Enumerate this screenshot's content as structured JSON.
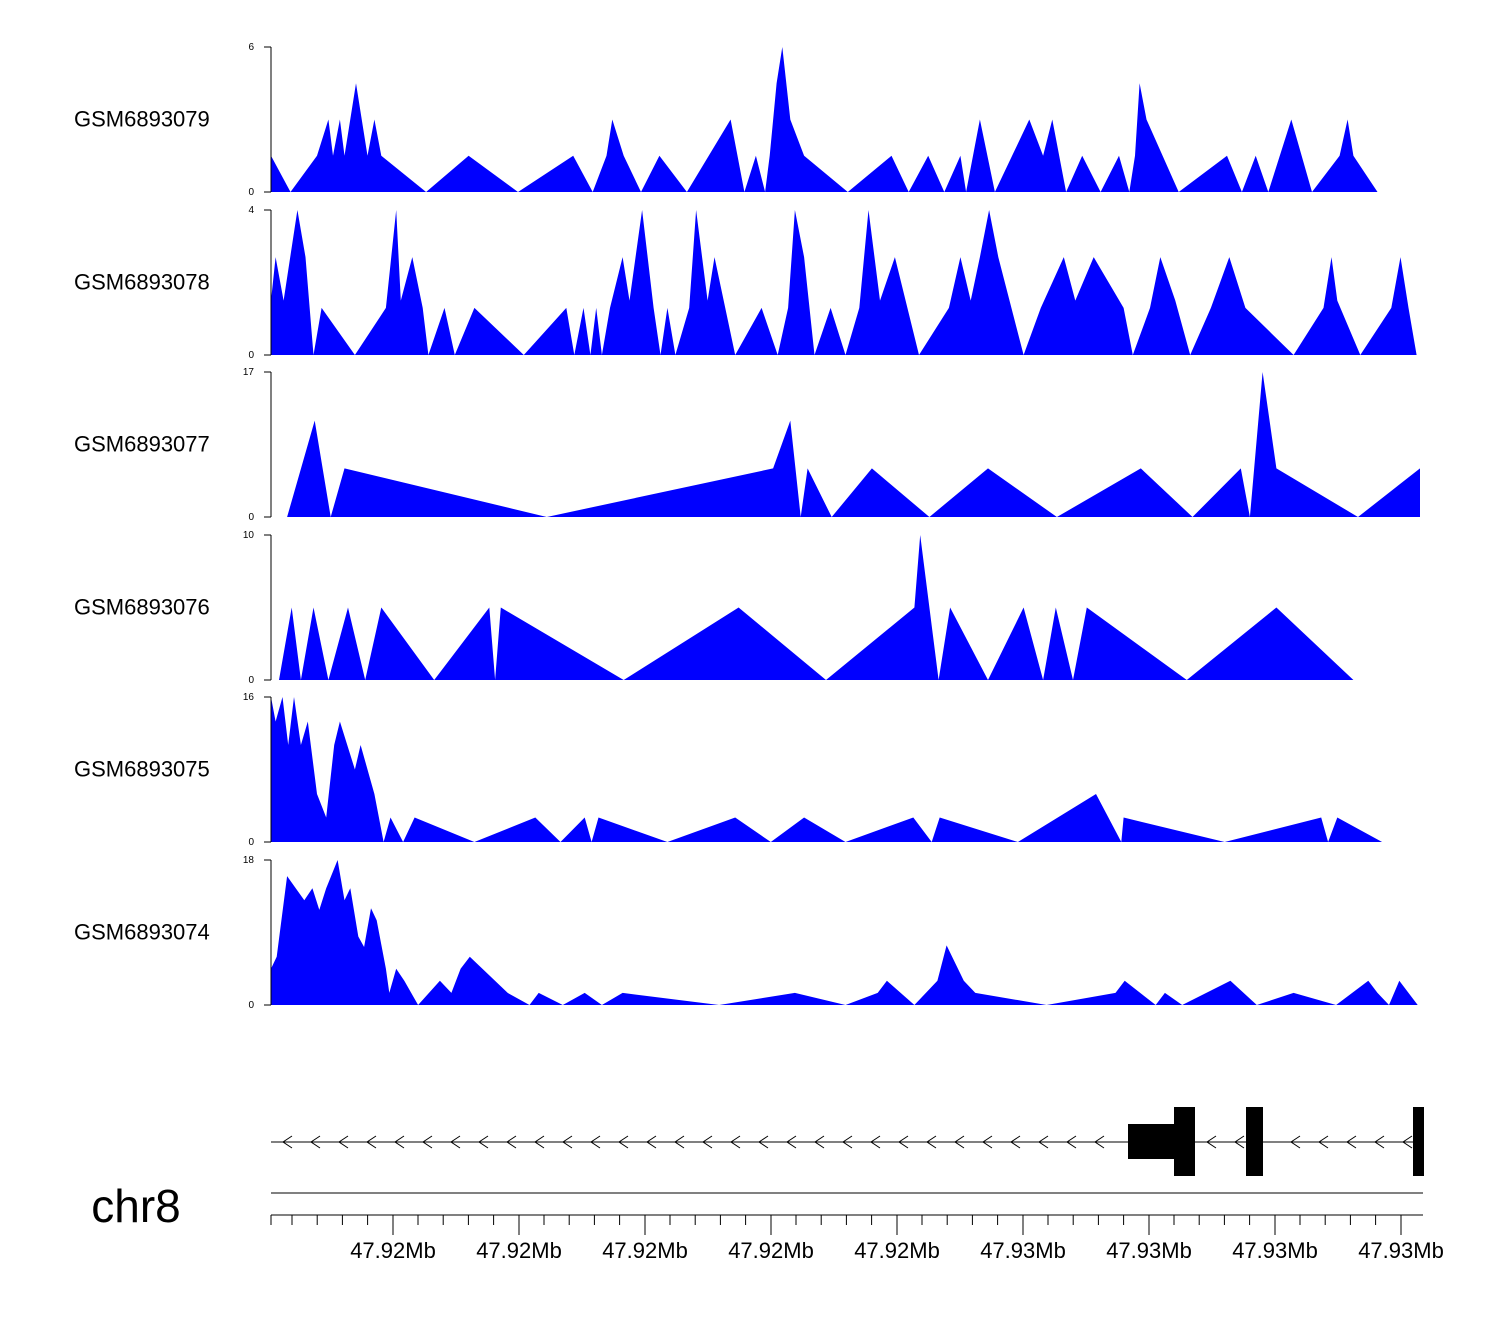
{
  "chart_data": {
    "type": "area",
    "chromosome": "chr8",
    "x_tick_labels": [
      "47.92Mb",
      "47.92Mb",
      "47.92Mb",
      "47.92Mb",
      "47.92Mb",
      "47.93Mb",
      "47.93Mb",
      "47.93Mb",
      "47.93Mb"
    ],
    "fill_color": "#0000ff",
    "tracks": [
      {
        "name": "GSM6893079",
        "ylim": [
          0,
          6
        ],
        "points": [
          [
            0,
            1.5
          ],
          [
            0.017,
            0
          ],
          [
            0.04,
            1.5
          ],
          [
            0.05,
            3
          ],
          [
            0.054,
            1.5
          ],
          [
            0.06,
            3
          ],
          [
            0.064,
            1.5
          ],
          [
            0.074,
            4.5
          ],
          [
            0.084,
            1.5
          ],
          [
            0.09,
            3
          ],
          [
            0.096,
            1.5
          ],
          [
            0.135,
            0
          ],
          [
            0.172,
            1.5
          ],
          [
            0.215,
            0
          ],
          [
            0.263,
            1.5
          ],
          [
            0.28,
            0
          ],
          [
            0.292,
            1.5
          ],
          [
            0.297,
            3
          ],
          [
            0.307,
            1.5
          ],
          [
            0.322,
            0
          ],
          [
            0.338,
            1.5
          ],
          [
            0.362,
            0
          ],
          [
            0.4,
            3
          ],
          [
            0.412,
            0
          ],
          [
            0.422,
            1.5
          ],
          [
            0.43,
            0
          ],
          [
            0.434,
            1.5
          ],
          [
            0.44,
            4.5
          ],
          [
            0.445,
            6
          ],
          [
            0.452,
            3
          ],
          [
            0.464,
            1.5
          ],
          [
            0.502,
            0
          ],
          [
            0.54,
            1.5
          ],
          [
            0.555,
            0
          ],
          [
            0.572,
            1.5
          ],
          [
            0.586,
            0
          ],
          [
            0.6,
            1.5
          ],
          [
            0.605,
            0
          ],
          [
            0.617,
            3
          ],
          [
            0.63,
            0
          ],
          [
            0.645,
            1.5
          ],
          [
            0.66,
            3
          ],
          [
            0.672,
            1.5
          ],
          [
            0.68,
            3
          ],
          [
            0.692,
            0
          ],
          [
            0.706,
            1.5
          ],
          [
            0.722,
            0
          ],
          [
            0.738,
            1.5
          ],
          [
            0.747,
            0
          ],
          [
            0.752,
            1.5
          ],
          [
            0.756,
            4.5
          ],
          [
            0.762,
            3
          ],
          [
            0.79,
            0
          ],
          [
            0.832,
            1.5
          ],
          [
            0.845,
            0
          ],
          [
            0.857,
            1.5
          ],
          [
            0.868,
            0
          ],
          [
            0.888,
            3
          ],
          [
            0.906,
            0
          ],
          [
            0.93,
            1.5
          ],
          [
            0.937,
            3
          ],
          [
            0.942,
            1.5
          ],
          [
            0.963,
            0
          ]
        ]
      },
      {
        "name": "GSM6893078",
        "ylim": [
          0,
          4
        ],
        "points": [
          [
            0,
            1.5
          ],
          [
            0.004,
            2.7
          ],
          [
            0.011,
            1.5
          ],
          [
            0.023,
            4
          ],
          [
            0.03,
            2.7
          ],
          [
            0.037,
            0
          ],
          [
            0.044,
            1.3
          ],
          [
            0.073,
            0
          ],
          [
            0.1,
            1.3
          ],
          [
            0.109,
            4
          ],
          [
            0.113,
            1.5
          ],
          [
            0.123,
            2.7
          ],
          [
            0.132,
            1.3
          ],
          [
            0.137,
            0
          ],
          [
            0.151,
            1.3
          ],
          [
            0.16,
            0
          ],
          [
            0.177,
            1.3
          ],
          [
            0.22,
            0
          ],
          [
            0.257,
            1.3
          ],
          [
            0.264,
            0
          ],
          [
            0.272,
            1.3
          ],
          [
            0.278,
            0
          ],
          [
            0.283,
            1.3
          ],
          [
            0.288,
            0
          ],
          [
            0.295,
            1.3
          ],
          [
            0.306,
            2.7
          ],
          [
            0.312,
            1.5
          ],
          [
            0.323,
            4
          ],
          [
            0.333,
            1.3
          ],
          [
            0.339,
            0
          ],
          [
            0.345,
            1.3
          ],
          [
            0.352,
            0
          ],
          [
            0.364,
            1.3
          ],
          [
            0.37,
            4
          ],
          [
            0.38,
            1.5
          ],
          [
            0.386,
            2.7
          ],
          [
            0.404,
            0
          ],
          [
            0.427,
            1.3
          ],
          [
            0.441,
            0
          ],
          [
            0.45,
            1.3
          ],
          [
            0.456,
            4
          ],
          [
            0.464,
            2.7
          ],
          [
            0.473,
            0
          ],
          [
            0.487,
            1.3
          ],
          [
            0.5,
            0
          ],
          [
            0.512,
            1.3
          ],
          [
            0.52,
            4
          ],
          [
            0.53,
            1.5
          ],
          [
            0.543,
            2.7
          ],
          [
            0.564,
            0
          ],
          [
            0.59,
            1.3
          ],
          [
            0.6,
            2.7
          ],
          [
            0.609,
            1.5
          ],
          [
            0.617,
            2.7
          ],
          [
            0.625,
            4
          ],
          [
            0.633,
            2.7
          ],
          [
            0.655,
            0
          ],
          [
            0.67,
            1.3
          ],
          [
            0.69,
            2.7
          ],
          [
            0.7,
            1.5
          ],
          [
            0.716,
            2.7
          ],
          [
            0.742,
            1.3
          ],
          [
            0.75,
            0
          ],
          [
            0.765,
            1.3
          ],
          [
            0.774,
            2.7
          ],
          [
            0.787,
            1.5
          ],
          [
            0.8,
            0
          ],
          [
            0.818,
            1.3
          ],
          [
            0.834,
            2.7
          ],
          [
            0.848,
            1.3
          ],
          [
            0.89,
            0
          ],
          [
            0.916,
            1.3
          ],
          [
            0.923,
            2.7
          ],
          [
            0.928,
            1.5
          ],
          [
            0.948,
            0
          ],
          [
            0.975,
            1.3
          ],
          [
            0.983,
            2.7
          ],
          [
            0.99,
            1.3
          ],
          [
            0.997,
            0
          ]
        ]
      },
      {
        "name": "GSM6893077",
        "ylim": [
          0,
          17
        ],
        "points": [
          [
            0.014,
            0
          ],
          [
            0.038,
            11.3
          ],
          [
            0.052,
            0
          ],
          [
            0.064,
            5.7
          ],
          [
            0.24,
            0
          ],
          [
            0.437,
            5.7
          ],
          [
            0.452,
            11.3
          ],
          [
            0.461,
            0
          ],
          [
            0.467,
            5.7
          ],
          [
            0.488,
            0
          ],
          [
            0.523,
            5.7
          ],
          [
            0.573,
            0
          ],
          [
            0.624,
            5.7
          ],
          [
            0.684,
            0
          ],
          [
            0.757,
            5.7
          ],
          [
            0.802,
            0
          ],
          [
            0.844,
            5.7
          ],
          [
            0.852,
            0
          ],
          [
            0.863,
            17
          ],
          [
            0.875,
            5.7
          ],
          [
            0.946,
            0
          ],
          [
            1.0,
            5.7
          ]
        ]
      },
      {
        "name": "GSM6893076",
        "ylim": [
          0,
          10
        ],
        "points": [
          [
            0.007,
            0
          ],
          [
            0.018,
            5
          ],
          [
            0.026,
            0
          ],
          [
            0.037,
            5
          ],
          [
            0.05,
            0
          ],
          [
            0.067,
            5
          ],
          [
            0.082,
            0
          ],
          [
            0.096,
            5
          ],
          [
            0.142,
            0
          ],
          [
            0.19,
            5
          ],
          [
            0.195,
            0
          ],
          [
            0.2,
            5
          ],
          [
            0.307,
            0
          ],
          [
            0.407,
            5
          ],
          [
            0.483,
            0
          ],
          [
            0.56,
            5
          ],
          [
            0.565,
            10
          ],
          [
            0.581,
            0
          ],
          [
            0.591,
            5
          ],
          [
            0.624,
            0
          ],
          [
            0.655,
            5
          ],
          [
            0.672,
            0
          ],
          [
            0.683,
            5
          ],
          [
            0.698,
            0
          ],
          [
            0.71,
            5
          ],
          [
            0.797,
            0
          ],
          [
            0.875,
            5
          ],
          [
            0.942,
            0
          ]
        ]
      },
      {
        "name": "GSM6893075",
        "ylim": [
          0,
          16
        ],
        "points": [
          [
            0,
            16
          ],
          [
            0.004,
            13.3
          ],
          [
            0.01,
            16
          ],
          [
            0.015,
            10.7
          ],
          [
            0.02,
            16
          ],
          [
            0.026,
            10.7
          ],
          [
            0.032,
            13.3
          ],
          [
            0.04,
            5.3
          ],
          [
            0.048,
            2.7
          ],
          [
            0.055,
            10.7
          ],
          [
            0.06,
            13.3
          ],
          [
            0.073,
            8
          ],
          [
            0.078,
            10.7
          ],
          [
            0.09,
            5.3
          ],
          [
            0.098,
            0
          ],
          [
            0.104,
            2.7
          ],
          [
            0.115,
            0
          ],
          [
            0.125,
            2.7
          ],
          [
            0.177,
            0
          ],
          [
            0.23,
            2.7
          ],
          [
            0.252,
            0
          ],
          [
            0.273,
            2.7
          ],
          [
            0.279,
            0
          ],
          [
            0.285,
            2.7
          ],
          [
            0.345,
            0
          ],
          [
            0.404,
            2.7
          ],
          [
            0.435,
            0
          ],
          [
            0.464,
            2.7
          ],
          [
            0.5,
            0
          ],
          [
            0.559,
            2.7
          ],
          [
            0.575,
            0
          ],
          [
            0.582,
            2.7
          ],
          [
            0.65,
            0
          ],
          [
            0.718,
            5.3
          ],
          [
            0.74,
            0
          ],
          [
            0.742,
            2.7
          ],
          [
            0.83,
            0
          ],
          [
            0.914,
            2.7
          ],
          [
            0.92,
            0
          ],
          [
            0.928,
            2.7
          ],
          [
            0.967,
            0
          ]
        ]
      },
      {
        "name": "GSM6893074",
        "ylim": [
          0,
          18
        ],
        "points": [
          [
            0,
            4.5
          ],
          [
            0.005,
            6
          ],
          [
            0.014,
            16
          ],
          [
            0.029,
            13
          ],
          [
            0.036,
            14.5
          ],
          [
            0.042,
            11.8
          ],
          [
            0.048,
            14.5
          ],
          [
            0.058,
            18
          ],
          [
            0.064,
            13
          ],
          [
            0.069,
            14.5
          ],
          [
            0.076,
            8.5
          ],
          [
            0.081,
            7.2
          ],
          [
            0.087,
            12
          ],
          [
            0.092,
            10.5
          ],
          [
            0.1,
            4.5
          ],
          [
            0.103,
            1.5
          ],
          [
            0.109,
            4.5
          ],
          [
            0.116,
            3
          ],
          [
            0.128,
            0
          ],
          [
            0.147,
            3
          ],
          [
            0.157,
            1.5
          ],
          [
            0.165,
            4.5
          ],
          [
            0.173,
            6
          ],
          [
            0.184,
            4.5
          ],
          [
            0.206,
            1.5
          ],
          [
            0.225,
            0
          ],
          [
            0.233,
            1.5
          ],
          [
            0.254,
            0
          ],
          [
            0.273,
            1.5
          ],
          [
            0.288,
            0
          ],
          [
            0.306,
            1.5
          ],
          [
            0.39,
            0
          ],
          [
            0.456,
            1.5
          ],
          [
            0.5,
            0
          ],
          [
            0.528,
            1.5
          ],
          [
            0.536,
            3
          ],
          [
            0.56,
            0
          ],
          [
            0.57,
            1.5
          ],
          [
            0.58,
            3
          ],
          [
            0.588,
            7.4
          ],
          [
            0.603,
            3
          ],
          [
            0.613,
            1.5
          ],
          [
            0.675,
            0
          ],
          [
            0.735,
            1.5
          ],
          [
            0.743,
            3
          ],
          [
            0.77,
            0
          ],
          [
            0.778,
            1.5
          ],
          [
            0.793,
            0
          ],
          [
            0.835,
            3
          ],
          [
            0.858,
            0
          ],
          [
            0.89,
            1.5
          ],
          [
            0.927,
            0
          ],
          [
            0.955,
            3
          ],
          [
            0.963,
            1.5
          ],
          [
            0.973,
            0
          ],
          [
            0.982,
            3
          ],
          [
            0.998,
            0
          ]
        ]
      }
    ]
  }
}
